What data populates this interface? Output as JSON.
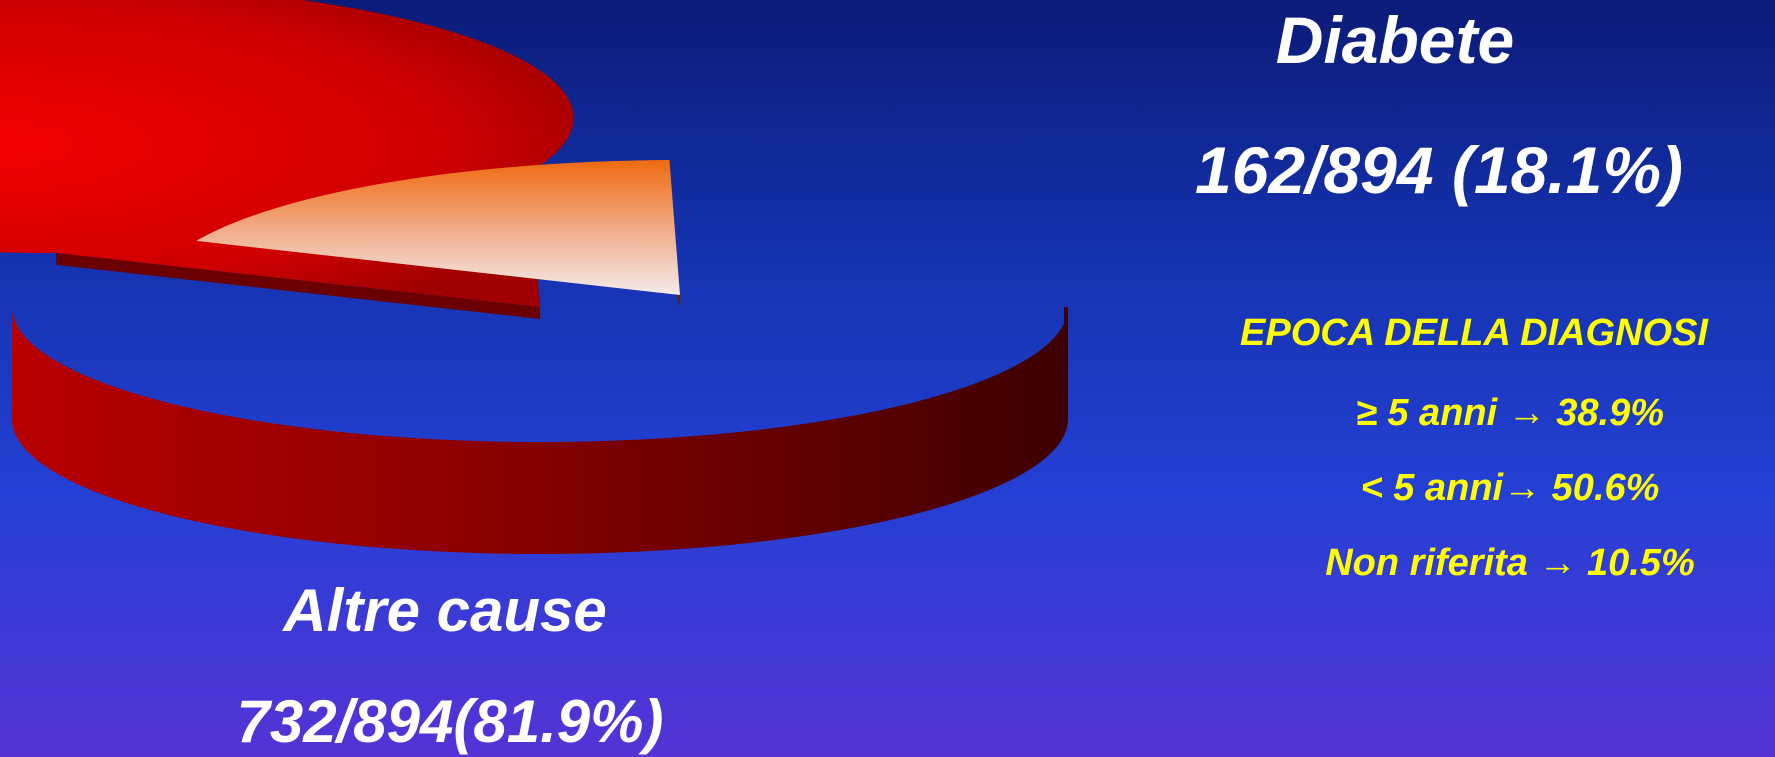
{
  "chart_data": {
    "type": "pie",
    "style": "3d-exploded",
    "slices": [
      {
        "label": "Altre cause",
        "count_label": "732/894(81.9%)",
        "value": 732,
        "percent": 81.9,
        "color": "#e00000"
      },
      {
        "label": "Diabete",
        "count_label": "162/894 (18.1%)",
        "value": 162,
        "percent": 18.1,
        "color": "#f07020",
        "exploded": true
      }
    ],
    "total": 894
  },
  "annotation": {
    "title": "EPOCA DELLA DIAGNOSI",
    "items": [
      "≥ 5 anni → 38.9%",
      "< 5 anni→ 50.6%",
      "Non riferita → 10.5%"
    ],
    "color": "#ffff00"
  }
}
